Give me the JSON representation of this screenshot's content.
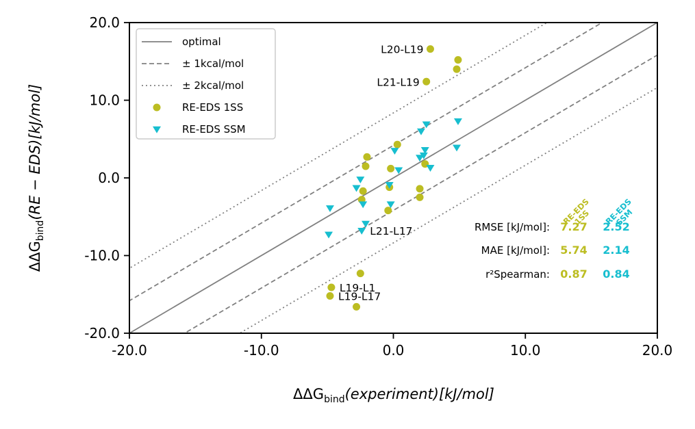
{
  "chart_data": {
    "type": "scatter",
    "xlabel_base": "ΔΔG",
    "xlabel_sub": "bind",
    "xlabel_rest": "(experiment)[kJ/mol]",
    "ylabel_base": "ΔΔG",
    "ylabel_sub": "bind",
    "ylabel_rest": "(RE − EDS)[kJ/mol]",
    "xlim": [
      -20,
      20
    ],
    "ylim": [
      -20,
      20
    ],
    "xticks": [
      -20,
      -10,
      0,
      10,
      20
    ],
    "yticks": [
      -20,
      -10,
      0,
      10,
      20
    ],
    "xtick_labels": [
      "-20.0",
      "-10.0",
      "0.0",
      "10.0",
      "20.0"
    ],
    "ytick_labels": [
      "-20.0",
      "-10.0",
      "0.0",
      "10.0",
      "20.0"
    ],
    "grid": false,
    "legend_position": "top-left",
    "legend": [
      {
        "label": "optimal",
        "kind": "line-solid"
      },
      {
        "label": "± 1kcal/mol",
        "kind": "line-dashed"
      },
      {
        "label": "± 2kcal/mol",
        "kind": "line-dotted"
      },
      {
        "label": "RE-EDS 1SS",
        "kind": "marker-circle"
      },
      {
        "label": "RE-EDS SSM",
        "kind": "marker-triangle"
      }
    ],
    "reference_lines": [
      {
        "name": "optimal",
        "offset": 0,
        "style": "solid"
      },
      {
        "name": "+1kcal",
        "offset": 4.184,
        "style": "dashed"
      },
      {
        "name": "-1kcal",
        "offset": -4.184,
        "style": "dashed"
      },
      {
        "name": "+2kcal",
        "offset": 8.368,
        "style": "dotted"
      },
      {
        "name": "-2kcal",
        "offset": -8.368,
        "style": "dotted"
      }
    ],
    "colors": {
      "s1ss": "#bcbd22",
      "ssm": "#17becf",
      "ref": "#808080"
    },
    "series": [
      {
        "name": "RE-EDS 1SS",
        "marker": "circle",
        "x": [
          2.8,
          4.9,
          4.8,
          2.5,
          0.3,
          -2.0,
          -2.1,
          -0.2,
          2.4,
          -2.3,
          -0.3,
          2.0,
          -2.4,
          -0.4,
          2.0,
          -2.5,
          -4.7,
          -4.8,
          -2.8
        ],
        "y": [
          16.6,
          15.2,
          14.0,
          12.4,
          4.3,
          2.7,
          1.5,
          1.2,
          1.8,
          -1.7,
          -1.2,
          -1.4,
          -2.8,
          -4.2,
          -2.5,
          -12.3,
          -14.1,
          -15.2,
          -16.6
        ]
      },
      {
        "name": "RE-EDS SSM",
        "marker": "triangle",
        "x": [
          2.5,
          4.9,
          2.1,
          2.4,
          0.1,
          4.8,
          2.0,
          2.3,
          2.8,
          0.4,
          -2.5,
          -2.8,
          -0.3,
          -2.3,
          -4.8,
          -0.2,
          -2.1,
          -2.4,
          -4.9
        ],
        "y": [
          6.9,
          7.3,
          6.0,
          3.6,
          3.5,
          3.9,
          2.6,
          2.9,
          1.3,
          1.0,
          -0.2,
          -1.3,
          -0.9,
          -3.4,
          -3.9,
          -3.4,
          -5.9,
          -6.8,
          -7.3
        ]
      }
    ],
    "annotations": [
      {
        "text": "L20-L19",
        "x": 2.8,
        "y": 16.6,
        "anchor": "end"
      },
      {
        "text": "L21-L19",
        "x": 2.5,
        "y": 12.4,
        "anchor": "end"
      },
      {
        "text": "L21-L17",
        "x": -2.4,
        "y": -6.8,
        "anchor": "start"
      },
      {
        "text": "L19-L1",
        "x": -4.7,
        "y": -14.1,
        "anchor": "start"
      },
      {
        "text": "L19-L17",
        "x": -4.8,
        "y": -15.2,
        "anchor": "start"
      }
    ],
    "stats": {
      "headers": [
        "RE-EDS\n1SS",
        "RE-EDS\nSSM"
      ],
      "rows": [
        {
          "label": "RMSE [kJ/mol]:",
          "values": [
            "7.27",
            "2.52"
          ]
        },
        {
          "label": "MAE [kJ/mol]:",
          "values": [
            "5.74",
            "2.14"
          ]
        },
        {
          "label": "r²Spearman:",
          "values": [
            "0.87",
            "0.84"
          ]
        }
      ]
    }
  }
}
